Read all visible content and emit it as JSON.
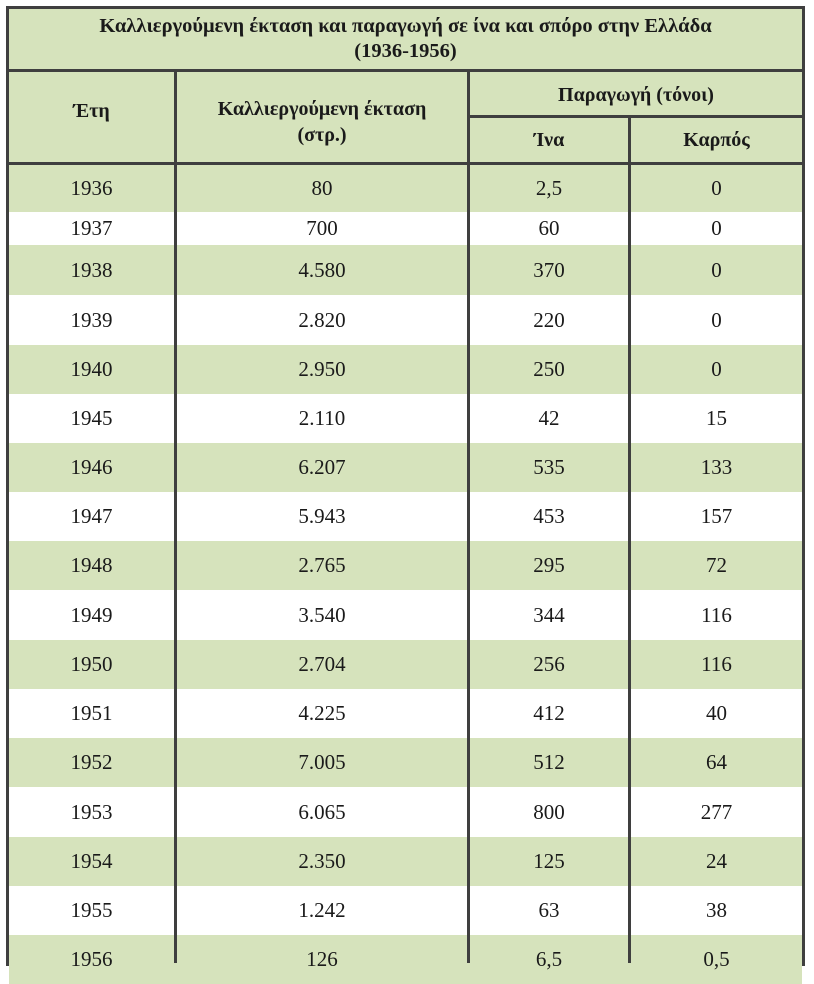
{
  "table": {
    "title_line1": "Καλλιεργούμενη έκταση και παραγωγή σε ίνα και σπόρο στην Ελλάδα",
    "title_line2": "(1936-1956)",
    "headers": {
      "year": "Έτη",
      "area_line1": "Καλλιεργούμενη έκταση",
      "area_line2": "(στρ.)",
      "production": "Παραγωγή (τόνοι)",
      "fiber": "Ίνα",
      "seed": "Καρπός"
    },
    "rows": [
      {
        "year": "1936",
        "area": "80",
        "fiber": "2,5",
        "seed": "0"
      },
      {
        "year": "1937",
        "area": "700",
        "fiber": "60",
        "seed": "0"
      },
      {
        "year": "1938",
        "area": "4.580",
        "fiber": "370",
        "seed": "0"
      },
      {
        "year": "1939",
        "area": "2.820",
        "fiber": "220",
        "seed": "0"
      },
      {
        "year": "1940",
        "area": "2.950",
        "fiber": "250",
        "seed": "0"
      },
      {
        "year": "1945",
        "area": "2.110",
        "fiber": "42",
        "seed": "15"
      },
      {
        "year": "1946",
        "area": "6.207",
        "fiber": "535",
        "seed": "133"
      },
      {
        "year": "1947",
        "area": "5.943",
        "fiber": "453",
        "seed": "157"
      },
      {
        "year": "1948",
        "area": "2.765",
        "fiber": "295",
        "seed": "72"
      },
      {
        "year": "1949",
        "area": "3.540",
        "fiber": "344",
        "seed": "116"
      },
      {
        "year": "1950",
        "area": "2.704",
        "fiber": "256",
        "seed": "116"
      },
      {
        "year": "1951",
        "area": "4.225",
        "fiber": "412",
        "seed": "40"
      },
      {
        "year": "1952",
        "area": "7.005",
        "fiber": "512",
        "seed": "64"
      },
      {
        "year": "1953",
        "area": "6.065",
        "fiber": "800",
        "seed": "277"
      },
      {
        "year": "1954",
        "area": "2.350",
        "fiber": "125",
        "seed": "24"
      },
      {
        "year": "1955",
        "area": "1.242",
        "fiber": "63",
        "seed": "38"
      },
      {
        "year": "1956",
        "area": "126",
        "fiber": "6,5",
        "seed": "0,5"
      }
    ]
  },
  "colors": {
    "header_fill": "#d6e3bc",
    "row_shade": "#d6e3bc",
    "border": "#3f3f3f"
  }
}
